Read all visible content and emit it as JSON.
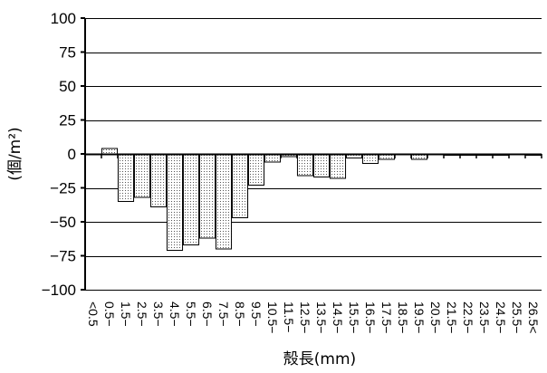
{
  "chart_data": {
    "type": "bar",
    "xlabel": "殻長(mm)",
    "ylabel": "(個/m²)",
    "ylim": [
      -100,
      100
    ],
    "yticks": [
      100,
      75,
      50,
      25,
      0,
      -25,
      -50,
      -75,
      -100
    ],
    "ytick_labels": [
      "100",
      "75",
      "50",
      "25",
      "0",
      "−25",
      "−50",
      "−75",
      "−100"
    ],
    "grid": true,
    "legend": "none",
    "bar_fill": "#d9d9d9",
    "bar_stroke": "#000000",
    "categories": [
      "<0.5",
      "0.5−",
      "1.5−",
      "2.5−",
      "3.5−",
      "4.5−",
      "5.5−",
      "6.5−",
      "7.5−",
      "8.5−",
      "9.5−",
      "10.5−",
      "11.5−",
      "12.5−",
      "13.5−",
      "14.5−",
      "15.5−",
      "16.5−",
      "17.5−",
      "18.5−",
      "19.5−",
      "20.5−",
      "21.5−",
      "22.5−",
      "23.5−",
      "24.5−",
      "25.5−",
      "26.5<"
    ],
    "values": [
      0,
      4,
      -35,
      -32,
      -39,
      -71,
      -67,
      -62,
      -70,
      -47,
      -23,
      -6,
      -2,
      -16,
      -17,
      -18,
      -3,
      -7,
      -4,
      0,
      -4,
      0,
      -1,
      -1,
      -1,
      -1,
      0,
      -1
    ]
  }
}
